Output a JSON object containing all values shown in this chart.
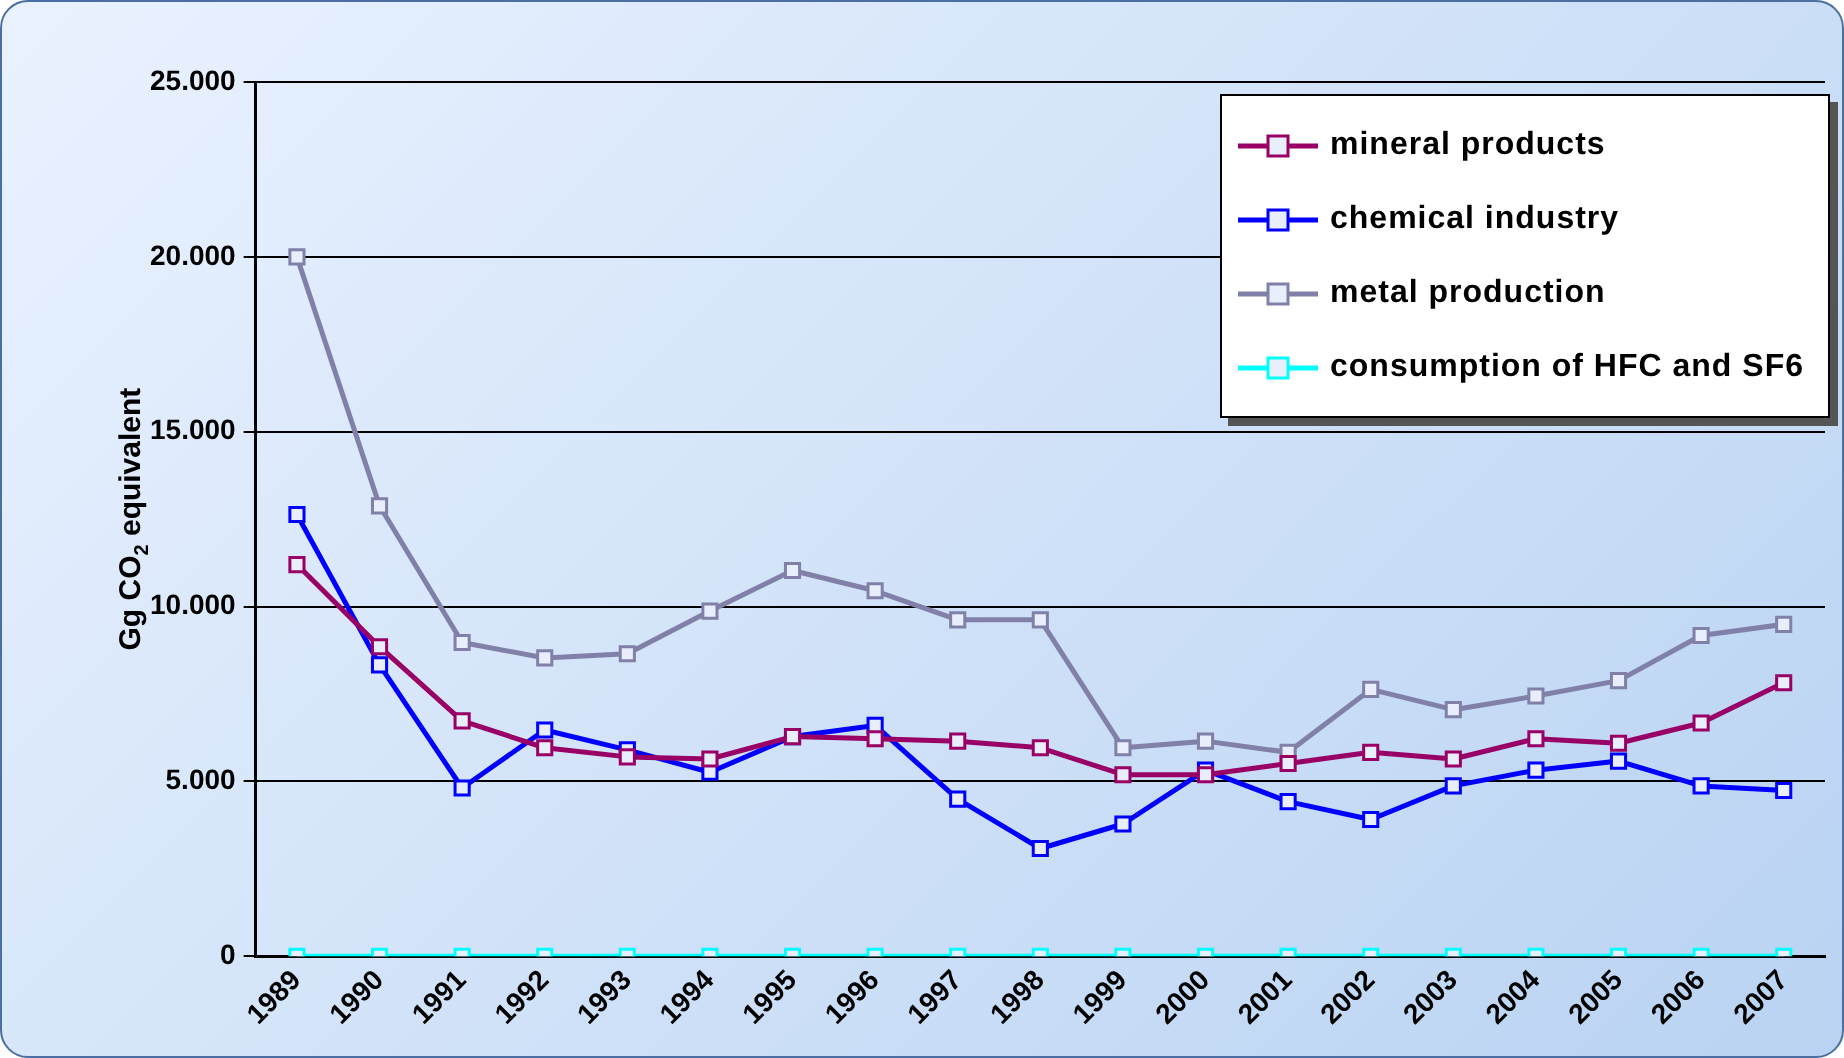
{
  "chart_data": {
    "type": "line",
    "ylabel": "Gg CO$_{2}$ equivalent",
    "categories": [
      "1989",
      "1990",
      "1991",
      "1992",
      "1993",
      "1994",
      "1995",
      "1996",
      "1997",
      "1998",
      "1999",
      "2000",
      "2001",
      "2002",
      "2003",
      "2004",
      "2005",
      "2006",
      "2007"
    ],
    "series": [
      {
        "name": "mineral products",
        "color": "#990066",
        "values": [
          11200,
          8850,
          6730,
          5960,
          5700,
          5640,
          6280,
          6220,
          6150,
          5960,
          5190,
          5190,
          5510,
          5830,
          5640,
          6220,
          6090,
          6670,
          7820
        ]
      },
      {
        "name": "chemical industry",
        "color": "#0000ff",
        "values": [
          12630,
          8330,
          4810,
          6470,
          5900,
          5260,
          6280,
          6600,
          4490,
          3080,
          3780,
          5320,
          4420,
          3910,
          4870,
          5320,
          5580,
          4870,
          4740
        ]
      },
      {
        "name": "metal production",
        "color": "#8080a8",
        "values": [
          20000,
          12880,
          8970,
          8530,
          8650,
          9870,
          11030,
          10450,
          9620,
          9620,
          5960,
          6150,
          5830,
          7630,
          7050,
          7440,
          7880,
          9170,
          9490
        ]
      },
      {
        "name": "consumption of HFC and SF6",
        "color": "#00ffff",
        "values": [
          0,
          0,
          0,
          0,
          0,
          0,
          0,
          0,
          0,
          0,
          0,
          0,
          0,
          0,
          0,
          0,
          0,
          0,
          0
        ]
      }
    ],
    "ylim": [
      0,
      25000
    ],
    "yticks": [
      {
        "value": 0,
        "label": "0"
      },
      {
        "value": 5000,
        "label": "5.000"
      },
      {
        "value": 10000,
        "label": "10.000"
      },
      {
        "value": 15000,
        "label": "15.000"
      },
      {
        "value": 20000,
        "label": "20.000"
      },
      {
        "value": 25000,
        "label": "25.000"
      }
    ],
    "grid": "y",
    "legend": "top right",
    "marker": "square",
    "line_style": "solid"
  }
}
